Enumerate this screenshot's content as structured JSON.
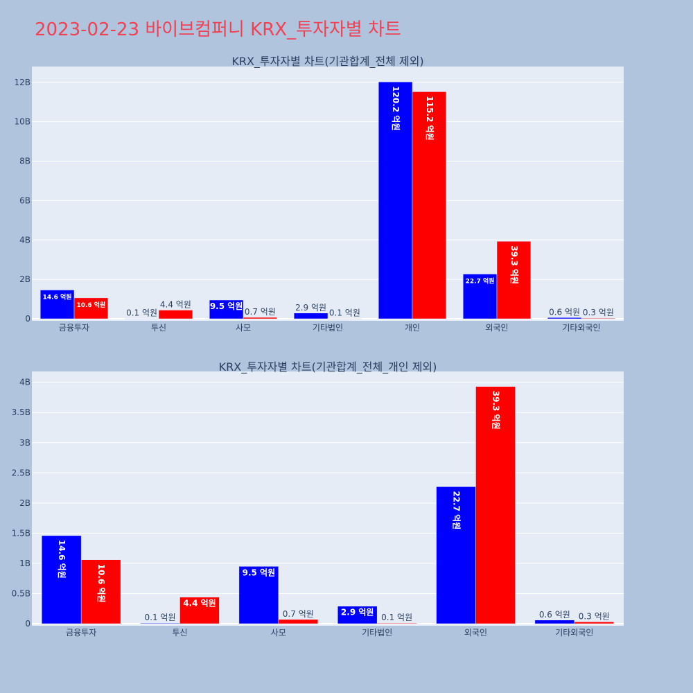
{
  "page": {
    "title": "2023-02-23 바이브컴퍼니 KRX_투자자별 차트"
  },
  "colors": {
    "background": "#b0c4de",
    "plot_background": "#e5ecf6",
    "title": "#ef4255",
    "buy": "#0000ff",
    "sell": "#ff0000",
    "text": "#2a3f5f"
  },
  "chart_data": [
    {
      "type": "bar",
      "title": "KRX_투자자별 차트(기관합계_전체 제외)",
      "categories": [
        "금융투자",
        "투신",
        "사모",
        "기타법인",
        "개인",
        "외국인",
        "기타외국인"
      ],
      "series": [
        {
          "color": "#0000ff",
          "values": [
            1460000000.0,
            10000000.0,
            950000000.0,
            290000000.0,
            12020000000.0,
            2270000000.0,
            60000000.0
          ],
          "labels": [
            "14.6 억원",
            "0.1 억원",
            "9.5 억원",
            "2.9 억원",
            "120.2 억원",
            "22.7 억원",
            "0.6 억원"
          ]
        },
        {
          "color": "#ff0000",
          "values": [
            1060000000.0,
            440000000.0,
            70000000.0,
            10000000.0,
            11520000000.0,
            3930000000.0,
            30000000.0
          ],
          "labels": [
            "10.6 억원",
            "4.4 억원",
            "0.7 억원",
            "0.1 억원",
            "115.2 억원",
            "39.3 억원",
            "0.3 억원"
          ]
        }
      ],
      "yticks": [
        0,
        2000000000.0,
        4000000000.0,
        6000000000.0,
        8000000000.0,
        10000000000.0,
        12000000000.0
      ],
      "ytick_labels": [
        "0",
        "2B",
        "4B",
        "6B",
        "8B",
        "10B",
        "12B"
      ],
      "ylim": [
        0,
        12800000000.0
      ],
      "grid": true,
      "barmode": "group"
    },
    {
      "type": "bar",
      "title": "KRX_투자자별 차트(기관합계_전체_개인 제외)",
      "categories": [
        "금융투자",
        "투신",
        "사모",
        "기타법인",
        "외국인",
        "기타외국인"
      ],
      "series": [
        {
          "color": "#0000ff",
          "values": [
            1460000000.0,
            10000000.0,
            950000000.0,
            290000000.0,
            2270000000.0,
            60000000.0
          ],
          "labels": [
            "14.6 억원",
            "0.1 억원",
            "9.5 억원",
            "2.9 억원",
            "22.7 억원",
            "0.6 억원"
          ]
        },
        {
          "color": "#ff0000",
          "values": [
            1060000000.0,
            440000000.0,
            70000000.0,
            10000000.0,
            3930000000.0,
            30000000.0
          ],
          "labels": [
            "10.6 억원",
            "4.4 억원",
            "0.7 억원",
            "0.1 억원",
            "39.3 억원",
            "0.3 억원"
          ]
        }
      ],
      "yticks": [
        0,
        500000000.0,
        1000000000.0,
        1500000000.0,
        2000000000.0,
        2500000000.0,
        3000000000.0,
        3500000000.0,
        4000000000.0
      ],
      "ytick_labels": [
        "0",
        "0.5B",
        "1B",
        "1.5B",
        "2B",
        "2.5B",
        "3B",
        "3.5B",
        "4B"
      ],
      "ylim": [
        0,
        4180000000.0
      ],
      "grid": true,
      "barmode": "group"
    }
  ]
}
